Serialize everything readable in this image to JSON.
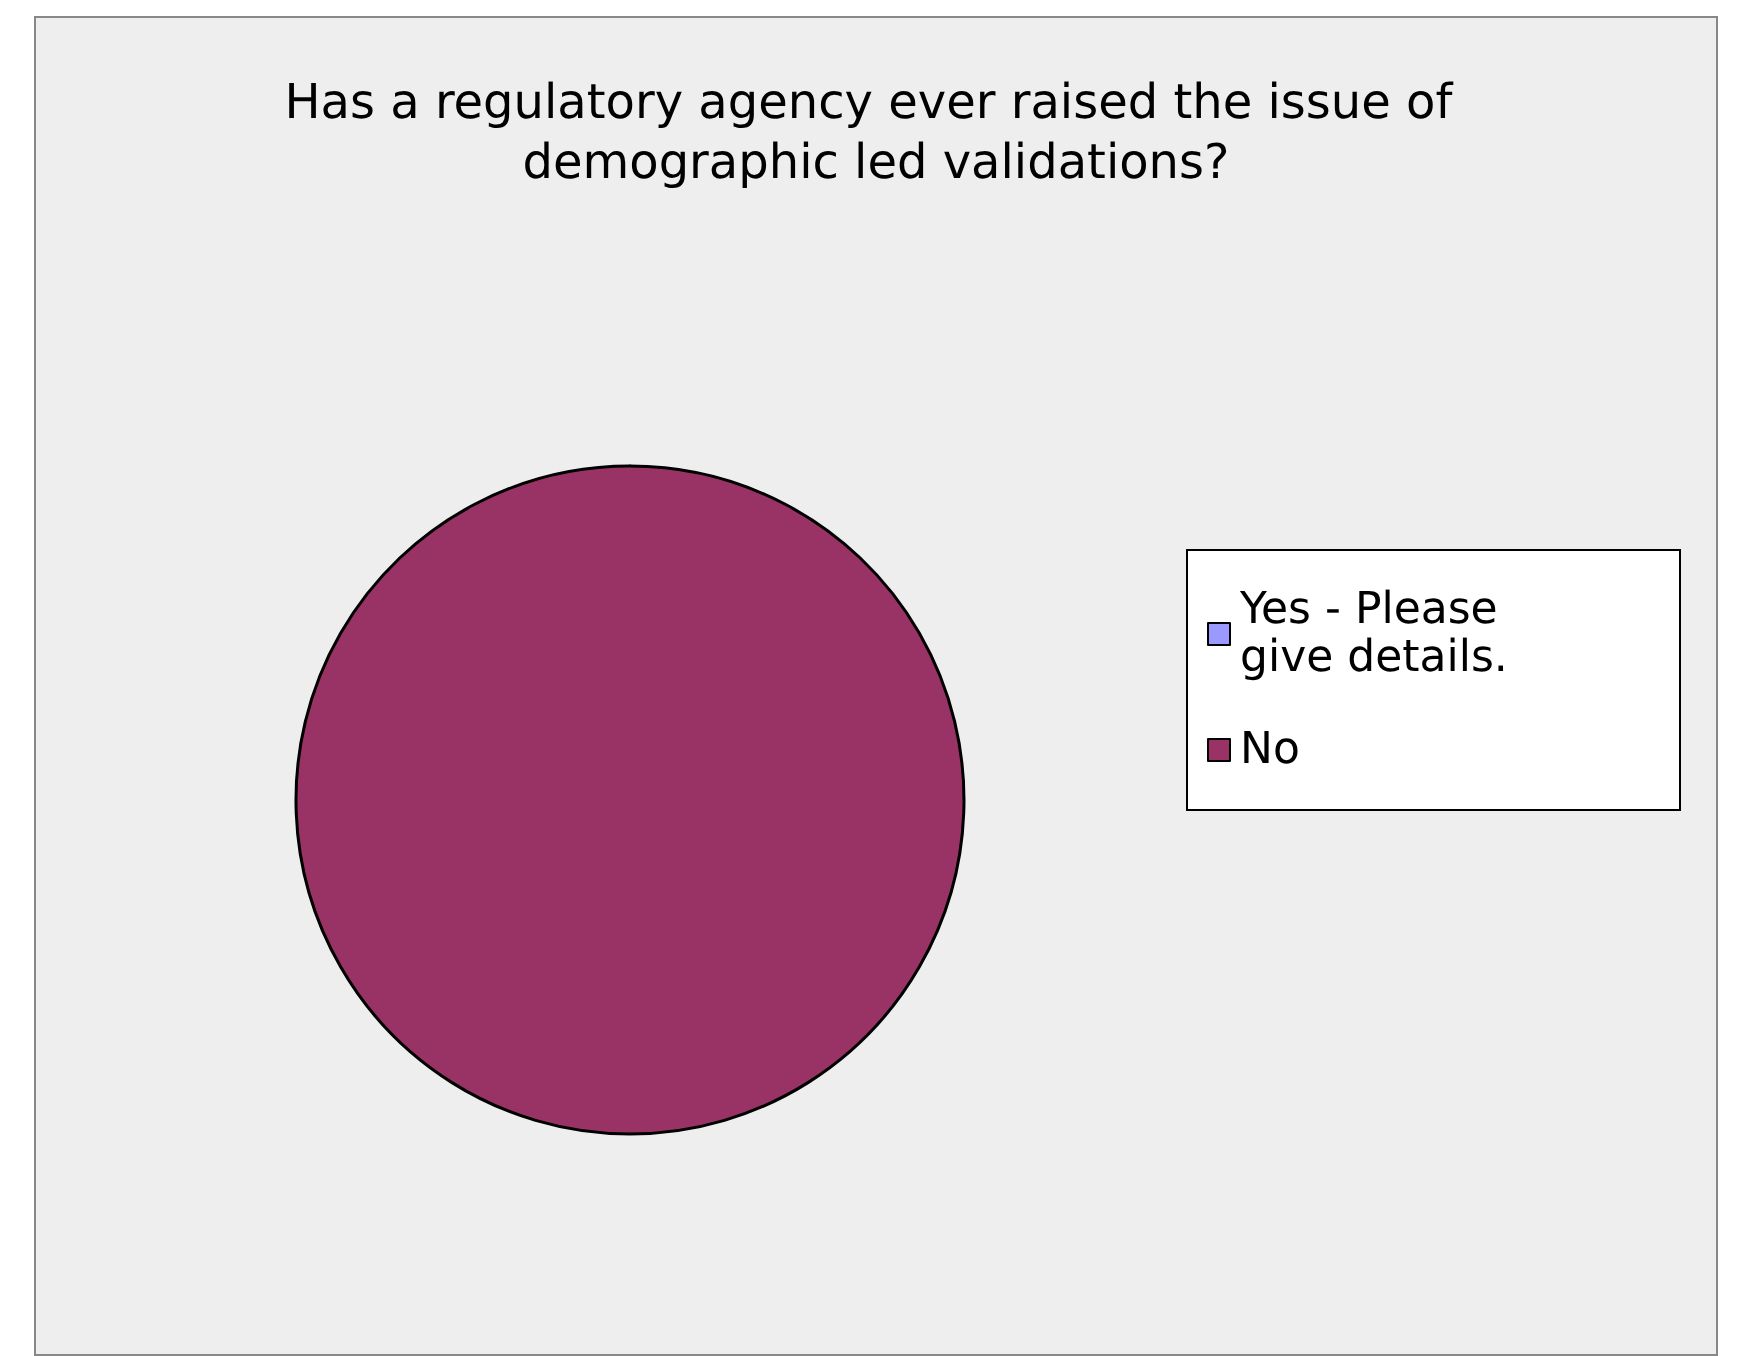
{
  "chart_data": {
    "type": "pie",
    "title": "Has a regulatory agency ever raised the issue of demographic led validations?",
    "categories": [
      "Yes - Please give details.",
      "No"
    ],
    "values": [
      0,
      100
    ],
    "colors": [
      "#9999ff",
      "#993366"
    ],
    "legend": "right"
  }
}
